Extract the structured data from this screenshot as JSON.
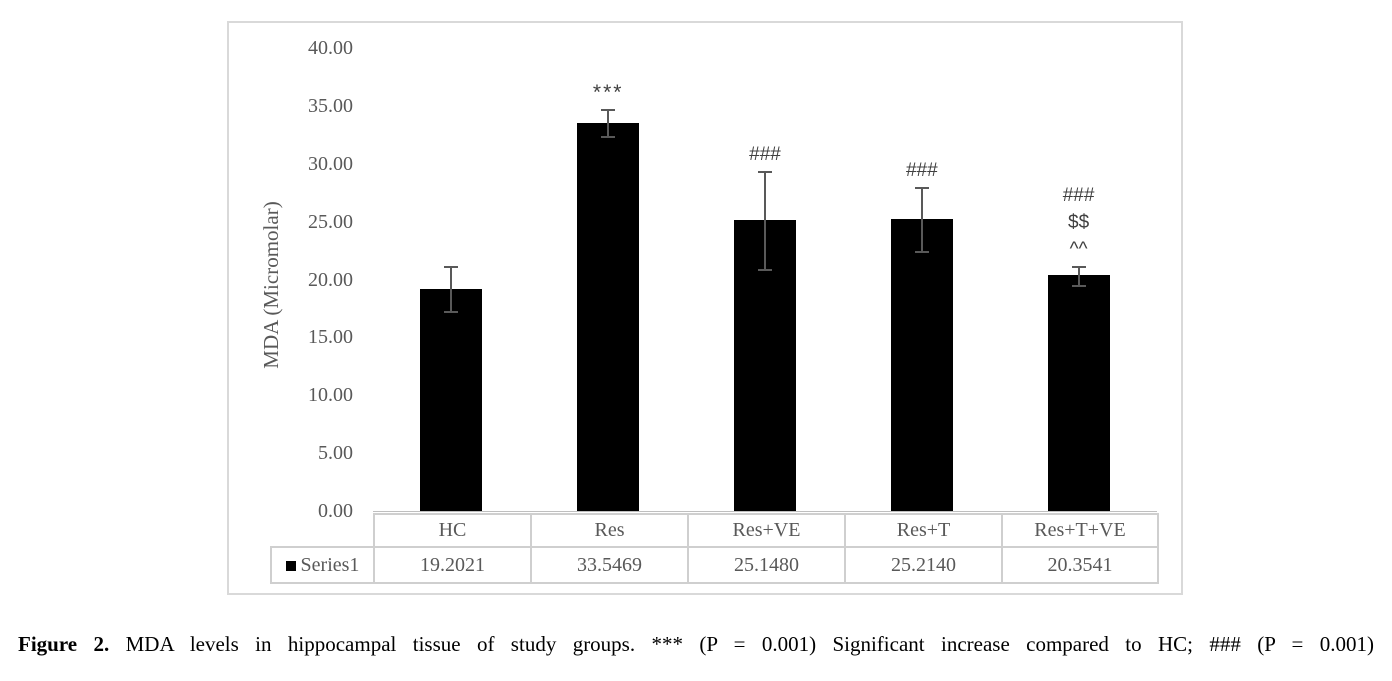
{
  "figure": {
    "caption_label": "Figure 2.",
    "caption_text": "MDA levels in hippocampal tissue of study groups. *** (P = 0.001) Significant increase compared to HC; ### (P = 0.001)"
  },
  "chart_data": {
    "type": "bar",
    "title": "",
    "xlabel": "",
    "ylabel": "MDA (Micromolar)",
    "categories": [
      "HC",
      "Res",
      "Res+VE",
      "Res+T",
      "Res+T+VE"
    ],
    "series": [
      {
        "name": "Series1",
        "values": [
          19.2021,
          33.5469,
          25.148,
          25.214,
          20.3541
        ],
        "value_labels": [
          "19.2021",
          "33.5469",
          "25.1480",
          "25.2140",
          "20.3541"
        ],
        "color": "#000000"
      }
    ],
    "error_bars": {
      "color": "#595959",
      "plus": [
        1.9,
        1.1,
        4.1,
        2.7,
        0.75
      ],
      "minus": [
        2.0,
        1.2,
        4.3,
        2.8,
        0.9
      ]
    },
    "annotations": [
      [],
      [
        "***"
      ],
      [
        "###"
      ],
      [
        "###"
      ],
      [
        "###",
        "$$",
        "^^"
      ]
    ],
    "y_axis": {
      "min": 0,
      "max": 40,
      "step": 5,
      "tick_labels": [
        "40.00",
        "35.00",
        "30.00",
        "25.00",
        "20.00",
        "15.00",
        "10.00",
        "5.00",
        "0.00"
      ]
    },
    "ylim": [
      0,
      40
    ],
    "gridlines": false,
    "legend_position": "data-table-left",
    "data_table_shown": true
  },
  "colors": {
    "bar": "#000000",
    "error_bar": "#595959",
    "axis_text": "#595959",
    "annotation_text": "#404040",
    "frame_border": "#d9d9d9",
    "table_border": "#cfcfcf",
    "legend_marker": "#000000",
    "background": "#ffffff",
    "caption_text": "#000000"
  }
}
